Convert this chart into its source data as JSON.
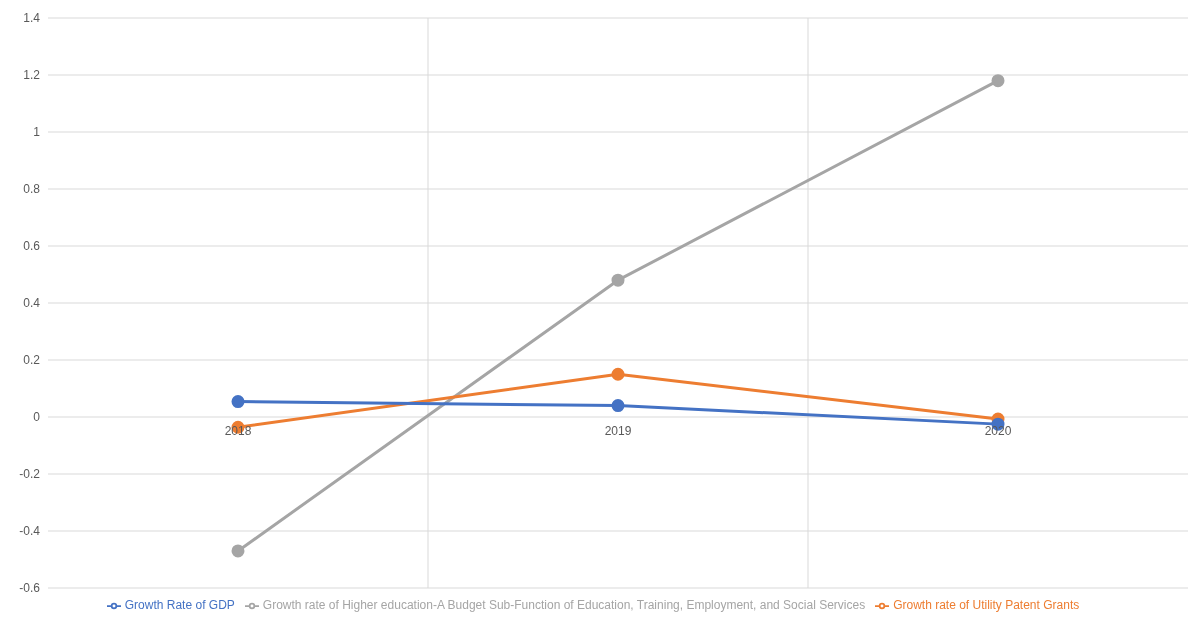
{
  "chart_data": {
    "type": "line",
    "categories": [
      "2018",
      "2019",
      "2020"
    ],
    "series": [
      {
        "name": "Growth Rate of GDP",
        "color": "#4472c4",
        "values": [
          0.054,
          0.04,
          -0.025
        ]
      },
      {
        "name": "Growth rate of Utility Patent Grants",
        "color": "#ed7d31",
        "values": [
          -0.036,
          0.15,
          -0.007
        ]
      },
      {
        "name": "Growth rate of Higher education-A Budget Sub-Function of Education, Training, Employment, and Social Services",
        "color": "#a5a5a5",
        "values": [
          -0.47,
          0.48,
          1.18
        ]
      }
    ],
    "ylim": [
      -0.6,
      1.4
    ],
    "yticks": [
      -0.6,
      -0.4,
      -0.2,
      0,
      0.2,
      0.4,
      0.6,
      0.8,
      1,
      1.2,
      1.4
    ],
    "grid": true,
    "legend": "bottom",
    "marker": "circle",
    "line_style": "solid"
  }
}
